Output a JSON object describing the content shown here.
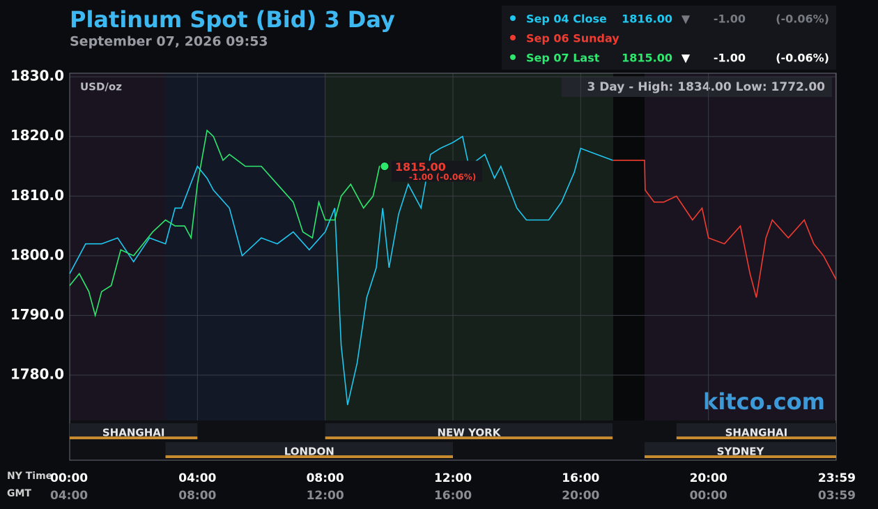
{
  "chart_data": {
    "type": "line",
    "title": "Platinum Spot (Bid) 3 Day",
    "subtitle": "September 07, 2026 09:53",
    "unit_label": "USD/oz",
    "range_note": "3 Day - High: 1834.00  Low: 1772.00",
    "watermark": "kitco.com",
    "x_axis_label": "NY Time",
    "x2_axis_label": "GMT",
    "xlim": [
      0,
      24
    ],
    "xticks": [
      {
        "value": 0,
        "label": "00:00"
      },
      {
        "value": 4,
        "label": "04:00"
      },
      {
        "value": 8,
        "label": "08:00"
      },
      {
        "value": 12,
        "label": "12:00"
      },
      {
        "value": 16,
        "label": "16:00"
      },
      {
        "value": 20,
        "label": "20:00"
      },
      {
        "value": 23.983,
        "label": "23:59"
      }
    ],
    "x2tick_labels": [
      "04:00",
      "08:00",
      "12:00",
      "16:00",
      "20:00",
      "00:00",
      "03:59"
    ],
    "ylim": [
      1772.4,
      1830.6
    ],
    "yticks": [
      {
        "value": 1780,
        "label": "1780.0"
      },
      {
        "value": 1790,
        "label": "1790.0"
      },
      {
        "value": 1800,
        "label": "1800.0"
      },
      {
        "value": 1810,
        "label": "1810.0"
      },
      {
        "value": 1820,
        "label": "1820.0"
      },
      {
        "value": 1830,
        "label": "1830.0"
      }
    ],
    "grid": true,
    "sessions_top": [
      {
        "name": "SHANGHAI",
        "start": 0,
        "end": 4
      },
      {
        "name": "NEW YORK",
        "start": 8,
        "end": 17
      },
      {
        "name": "SHANGHAI",
        "start": 19,
        "end": 24
      }
    ],
    "sessions_bottom": [
      {
        "name": "LONDON",
        "start": 3,
        "end": 12
      },
      {
        "name": "SYDNEY",
        "start": 18,
        "end": 24
      }
    ],
    "series": [
      {
        "name": "Sep 04 Close",
        "color": "#1ec8f0",
        "quote": {
          "price": "1816.00",
          "arrow": "▼",
          "change": "-1.00",
          "change_pct": "(-0.06%)"
        },
        "x": [
          0,
          0.5,
          1,
          1.5,
          2,
          2.5,
          3,
          3.3,
          3.5,
          4,
          4.3,
          4.5,
          5,
          5.4,
          6,
          6.5,
          7,
          7.5,
          8,
          8.3,
          8.5,
          8.7,
          9,
          9.3,
          9.6,
          9.8,
          10,
          10.3,
          10.6,
          11,
          11.3,
          11.6,
          12,
          12.3,
          12.5,
          13,
          13.3,
          13.5,
          14,
          14.3,
          15,
          15.4,
          15.8,
          16,
          16.5,
          17
        ],
        "values": [
          1797,
          1802,
          1802,
          1803,
          1799,
          1803,
          1802,
          1808,
          1808,
          1815,
          1813,
          1811,
          1808,
          1800,
          1803,
          1802,
          1804,
          1801,
          1804,
          1808,
          1785,
          1775,
          1782,
          1793,
          1798,
          1808,
          1798,
          1807,
          1812,
          1808,
          1817,
          1818,
          1819,
          1820,
          1815,
          1817,
          1813,
          1815,
          1808,
          1806,
          1806,
          1809,
          1814,
          1818,
          1817,
          1816
        ]
      },
      {
        "name": "Sep 06 Sunday",
        "color": "#f03c30",
        "x": [
          17,
          18,
          18.02,
          18.3,
          18.6,
          19,
          19.5,
          19.8,
          20,
          20.5,
          21,
          21.3,
          21.5,
          21.8,
          22,
          22.5,
          23,
          23.3,
          23.6,
          24
        ],
        "values": [
          1816,
          1816,
          1811,
          1809,
          1809,
          1810,
          1806,
          1808,
          1803,
          1802,
          1805,
          1797,
          1793,
          1803,
          1806,
          1803,
          1806,
          1802,
          1800,
          1796
        ]
      },
      {
        "name": "Sep 07 Last",
        "color": "#2ee86e",
        "quote": {
          "price": "1815.00",
          "arrow": "▼",
          "change": "-1.00",
          "change_pct": "(-0.06%)"
        },
        "x": [
          0,
          0.3,
          0.6,
          0.8,
          1,
          1.3,
          1.6,
          2,
          2.3,
          2.6,
          3,
          3.3,
          3.6,
          3.8,
          4,
          4.3,
          4.5,
          4.8,
          5,
          5.5,
          6,
          6.5,
          7,
          7.3,
          7.6,
          7.8,
          8,
          8.3,
          8.5,
          8.8,
          9,
          9.2,
          9.5,
          9.7,
          9.86
        ],
        "values": [
          1795,
          1797,
          1794,
          1790,
          1794,
          1795,
          1801,
          1800,
          1802,
          1804,
          1806,
          1805,
          1805,
          1803,
          1812,
          1821,
          1820,
          1816,
          1817,
          1815,
          1815,
          1812,
          1809,
          1804,
          1803,
          1809,
          1806,
          1806,
          1810,
          1812,
          1810,
          1808,
          1810,
          1815,
          1815
        ]
      }
    ],
    "last_annotation": {
      "price": "1815.00",
      "change": "-1.00 (-0.06%)"
    }
  }
}
